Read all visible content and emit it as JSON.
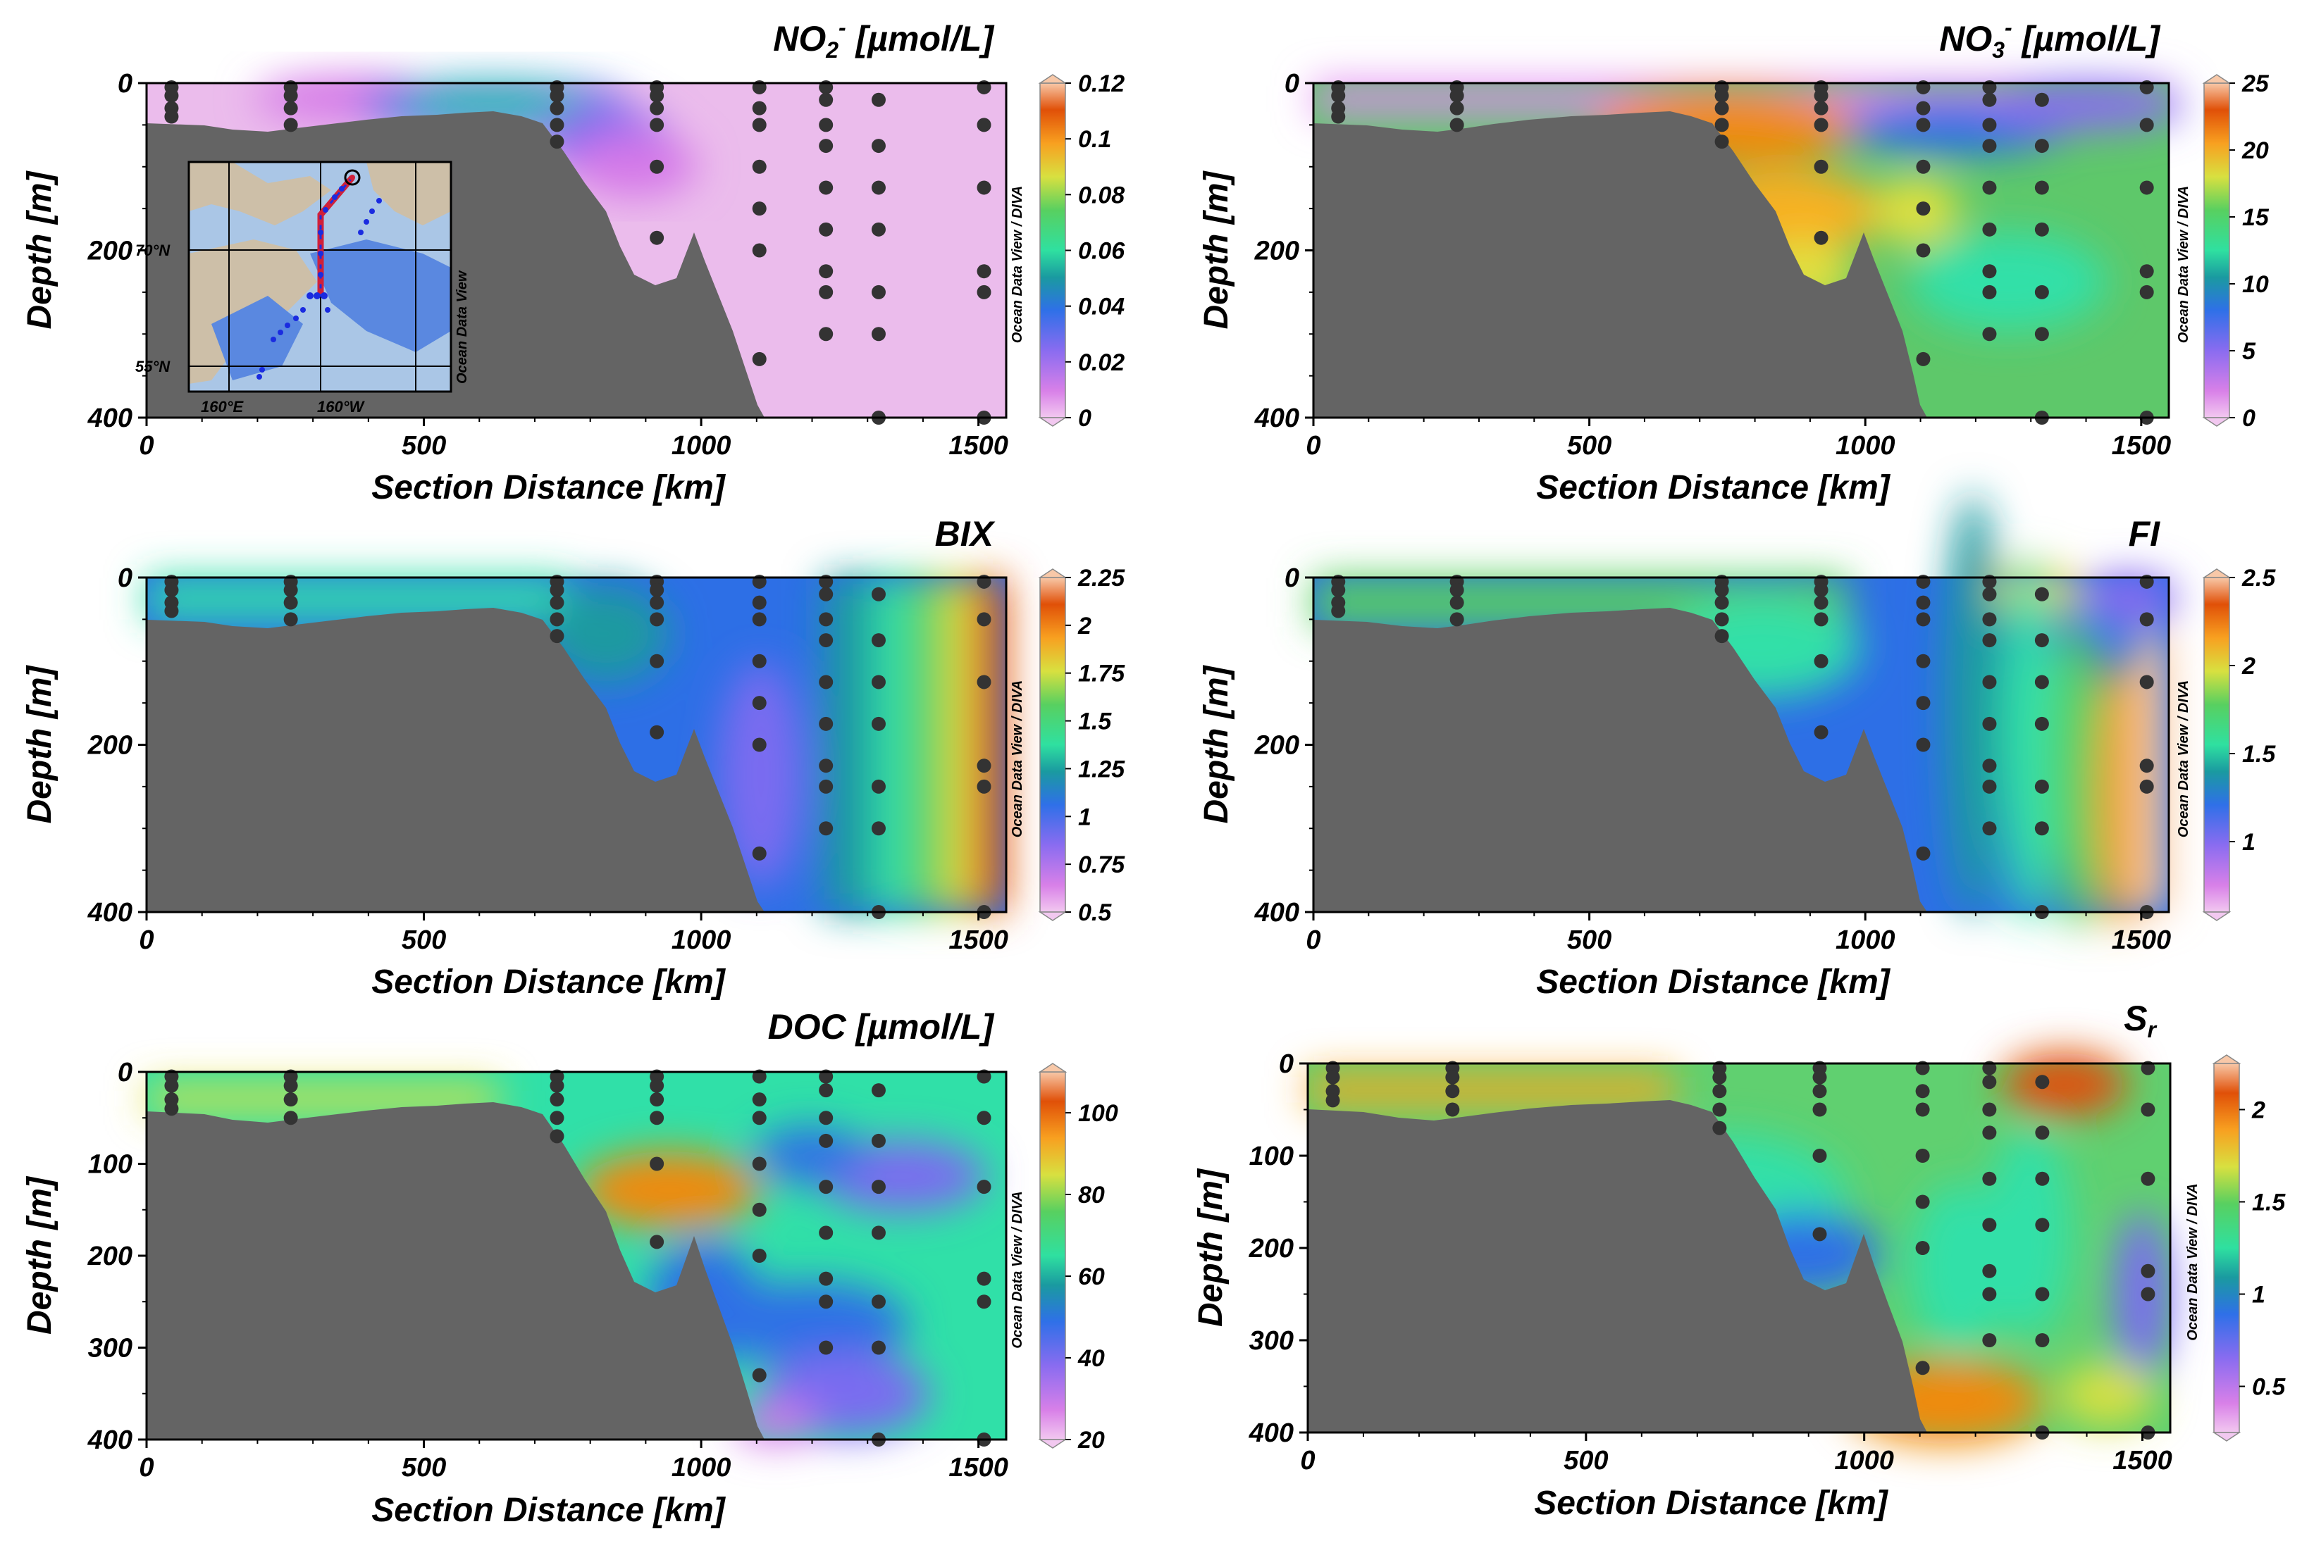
{
  "chart_data": [
    {
      "type": "heatmap",
      "id": "no2",
      "title": "NO2- [µmol/L]",
      "title_main": "NO",
      "title_sub": "2",
      "title_sup": "-",
      "title_unit": " [µmol/L]",
      "xlabel": "Section Distance [km]",
      "ylabel": "Depth [m]",
      "xlim": [
        0,
        1550
      ],
      "ylim": [
        400,
        0
      ],
      "xticks": [
        "0",
        "500",
        "1000",
        "1500"
      ],
      "yticks": [
        "0",
        "200",
        "400"
      ],
      "colorbar": {
        "min": 0,
        "max": 0.12,
        "ticks": [
          "0",
          "0.02",
          "0.04",
          "0.06",
          "0.08",
          "0.1",
          "0.12"
        ],
        "label": "Ocean Data View / DIVA"
      },
      "inset_map": {
        "lat_labels": [
          "70°N",
          "55°N"
        ],
        "lon_labels": [
          "160°E",
          "160°W"
        ],
        "watermark": "Ocean Data View"
      }
    },
    {
      "type": "heatmap",
      "id": "no3",
      "title": "NO3- [µmol/L]",
      "title_main": "NO",
      "title_sub": "3",
      "title_sup": "-",
      "title_unit": " [µmol/L]",
      "xlabel": "Section Distance [km]",
      "ylabel": "Depth [m]",
      "xlim": [
        0,
        1550
      ],
      "ylim": [
        400,
        0
      ],
      "xticks": [
        "0",
        "500",
        "1000",
        "1500"
      ],
      "yticks": [
        "0",
        "200",
        "400"
      ],
      "colorbar": {
        "min": 0,
        "max": 25,
        "ticks": [
          "0",
          "5",
          "10",
          "15",
          "20",
          "25"
        ],
        "label": "Ocean Data View / DIVA"
      }
    },
    {
      "type": "heatmap",
      "id": "bix",
      "title": "BIX",
      "xlabel": "Section Distance [km]",
      "ylabel": "Depth [m]",
      "xlim": [
        0,
        1550
      ],
      "ylim": [
        400,
        0
      ],
      "xticks": [
        "0",
        "500",
        "1000",
        "1500"
      ],
      "yticks": [
        "0",
        "200",
        "400"
      ],
      "colorbar": {
        "min": 0.5,
        "max": 2.25,
        "ticks": [
          "0.5",
          "0.75",
          "1",
          "1.25",
          "1.5",
          "1.75",
          "2",
          "2.25"
        ],
        "label": "Ocean Data View / DIVA"
      }
    },
    {
      "type": "heatmap",
      "id": "fi",
      "title": "FI",
      "xlabel": "Section Distance [km]",
      "ylabel": "Depth [m]",
      "xlim": [
        0,
        1550
      ],
      "ylim": [
        400,
        0
      ],
      "xticks": [
        "0",
        "500",
        "1000",
        "1500"
      ],
      "yticks": [
        "0",
        "200",
        "400"
      ],
      "colorbar": {
        "min": 0.6,
        "max": 2.5,
        "ticks": [
          "1",
          "1.5",
          "2",
          "2.5"
        ],
        "label": "Ocean Data View / DIVA"
      }
    },
    {
      "type": "heatmap",
      "id": "doc",
      "title": "DOC [µmol/L]",
      "xlabel": "Section Distance [km]",
      "ylabel": "Depth [m]",
      "xlim": [
        0,
        1550
      ],
      "ylim": [
        400,
        0
      ],
      "xticks": [
        "0",
        "500",
        "1000",
        "1500"
      ],
      "yticks": [
        "0",
        "100",
        "200",
        "300",
        "400"
      ],
      "colorbar": {
        "min": 20,
        "max": 110,
        "ticks": [
          "20",
          "40",
          "60",
          "80",
          "100"
        ],
        "label": "Ocean Data View / DIVA"
      }
    },
    {
      "type": "heatmap",
      "id": "sr",
      "title": "Sr",
      "title_main": "S",
      "title_sub": "r",
      "xlabel": "Section Distance [km]",
      "ylabel": "Depth [m]",
      "xlim": [
        0,
        1550
      ],
      "ylim": [
        400,
        0
      ],
      "xticks": [
        "0",
        "500",
        "1000",
        "1500"
      ],
      "yticks": [
        "0",
        "100",
        "200",
        "300",
        "400"
      ],
      "colorbar": {
        "min": 0.25,
        "max": 2.25,
        "ticks": [
          "0.5",
          "1",
          "1.5",
          "2"
        ],
        "label": "Ocean Data View / DIVA"
      }
    }
  ],
  "colors": {
    "topography": "#646464",
    "station_dots": "#333333",
    "inset_track": "#d0203a",
    "inset_stations": "#1a2be0"
  }
}
